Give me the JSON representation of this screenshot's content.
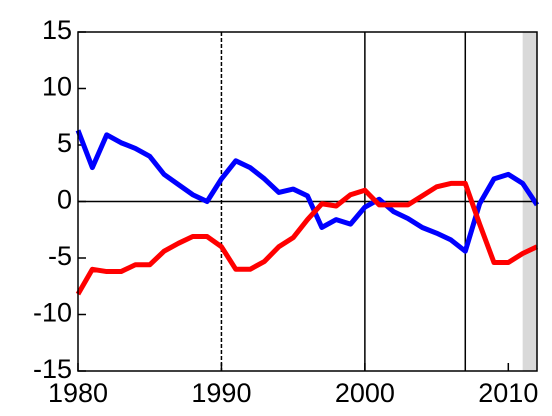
{
  "chart_data": {
    "type": "line",
    "x": [
      1980,
      1981,
      1982,
      1983,
      1984,
      1985,
      1986,
      1987,
      1988,
      1989,
      1990,
      1991,
      1992,
      1993,
      1994,
      1995,
      1996,
      1997,
      1998,
      1999,
      2000,
      2001,
      2002,
      2003,
      2004,
      2005,
      2006,
      2007,
      2008,
      2009,
      2010,
      2011,
      2012
    ],
    "series": [
      {
        "color": "#0000ff",
        "values": [
          6.3,
          3.0,
          5.9,
          5.2,
          4.7,
          4.0,
          2.4,
          1.5,
          0.6,
          0.0,
          2.0,
          3.6,
          3.0,
          2.0,
          0.8,
          1.1,
          0.5,
          -2.3,
          -1.6,
          -2.0,
          -0.5,
          0.2,
          -0.9,
          -1.5,
          -2.3,
          -2.8,
          -3.4,
          -4.4,
          -0.2,
          2.0,
          2.4,
          1.6,
          -0.3
        ]
      },
      {
        "color": "#ff0000",
        "values": [
          -8.2,
          -6.0,
          -6.2,
          -6.2,
          -5.6,
          -5.6,
          -4.4,
          -3.7,
          -3.1,
          -3.1,
          -4.0,
          -6.0,
          -6.0,
          -5.3,
          -4.0,
          -3.2,
          -1.6,
          -0.2,
          -0.4,
          0.6,
          1.0,
          -0.3,
          -0.3,
          -0.3,
          0.5,
          1.3,
          1.6,
          1.6,
          -2.0,
          -5.4,
          -5.4,
          -4.6,
          -4.0
        ]
      }
    ],
    "xlim": [
      1980,
      2012
    ],
    "xticks": [
      1980,
      1990,
      2000,
      2010
    ],
    "ylim": [
      -15,
      15
    ],
    "yticks": [
      -15,
      -10,
      -5,
      0,
      5,
      10,
      15
    ],
    "vlines": [
      1990,
      2000,
      2007
    ],
    "shade": [
      2011,
      2012
    ]
  }
}
